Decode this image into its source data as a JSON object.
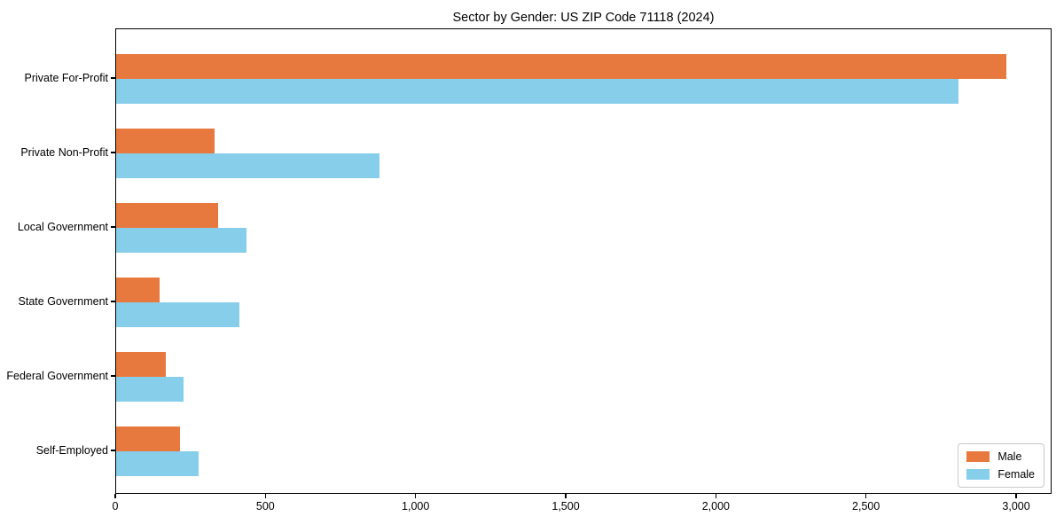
{
  "title": "Sector by Gender: US ZIP Code 71118 (2024)",
  "colors": {
    "male": "#e8793e",
    "female": "#87ceeb",
    "axis": "#000000",
    "legend_border": "#c8c8c8",
    "background": "#ffffff"
  },
  "legend": {
    "position": "lower right",
    "items": [
      {
        "label": "Male",
        "color": "#e8793e"
      },
      {
        "label": "Female",
        "color": "#87ceeb"
      }
    ]
  },
  "chart_data": {
    "type": "bar",
    "orientation": "horizontal",
    "title": "Sector by Gender: US ZIP Code 71118 (2024)",
    "xlabel": "",
    "ylabel": "",
    "categories": [
      "Private For-Profit",
      "Private Non-Profit",
      "Local Government",
      "State Government",
      "Federal Government",
      "Self-Employed"
    ],
    "series": [
      {
        "name": "Male",
        "color": "#e8793e",
        "values": [
          2965,
          327,
          340,
          146,
          165,
          213
        ]
      },
      {
        "name": "Female",
        "color": "#87ceeb",
        "values": [
          2805,
          877,
          433,
          409,
          224,
          275
        ]
      }
    ],
    "xlim": [
      0,
      3118
    ],
    "xticks": {
      "values": [
        0,
        500,
        1000,
        1500,
        2000,
        2500,
        3000
      ],
      "labels": [
        "0",
        "500",
        "1,000",
        "1,500",
        "2,000",
        "2,500",
        "3,000"
      ]
    },
    "grid": false,
    "legend_position": "lower right"
  }
}
